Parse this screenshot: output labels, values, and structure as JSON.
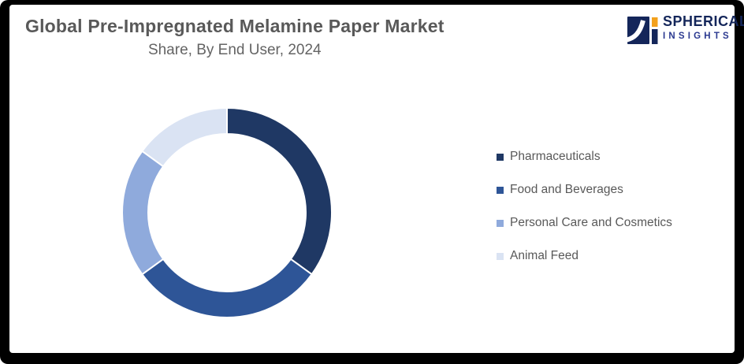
{
  "header": {
    "title": "Global Pre-Impregnated Melamine Paper Market",
    "subtitle": "Share, By End User, 2024"
  },
  "logo": {
    "brand": "SPHERICAL",
    "brand_sub": "INSIGHTS",
    "navy": "#14265a",
    "orange": "#f3a11d"
  },
  "chart_data": {
    "type": "pie",
    "donut": true,
    "title": "Global Pre-Impregnated Melamine Paper Market Share, By End User, 2024",
    "start_angle_deg": 0,
    "direction": "clockwise",
    "legend_position": "right",
    "categories": [
      "Pharmaceuticals",
      "Food and Beverages",
      "Personal Care and Cosmetics",
      "Animal Feed"
    ],
    "values": [
      35,
      30,
      20,
      15
    ],
    "unit": "%",
    "colors": [
      "#1f3864",
      "#2e5597",
      "#8faadc",
      "#dae3f3"
    ],
    "slice_border_color": "#ffffff",
    "outer_radius": 133,
    "inner_radius": 100
  }
}
